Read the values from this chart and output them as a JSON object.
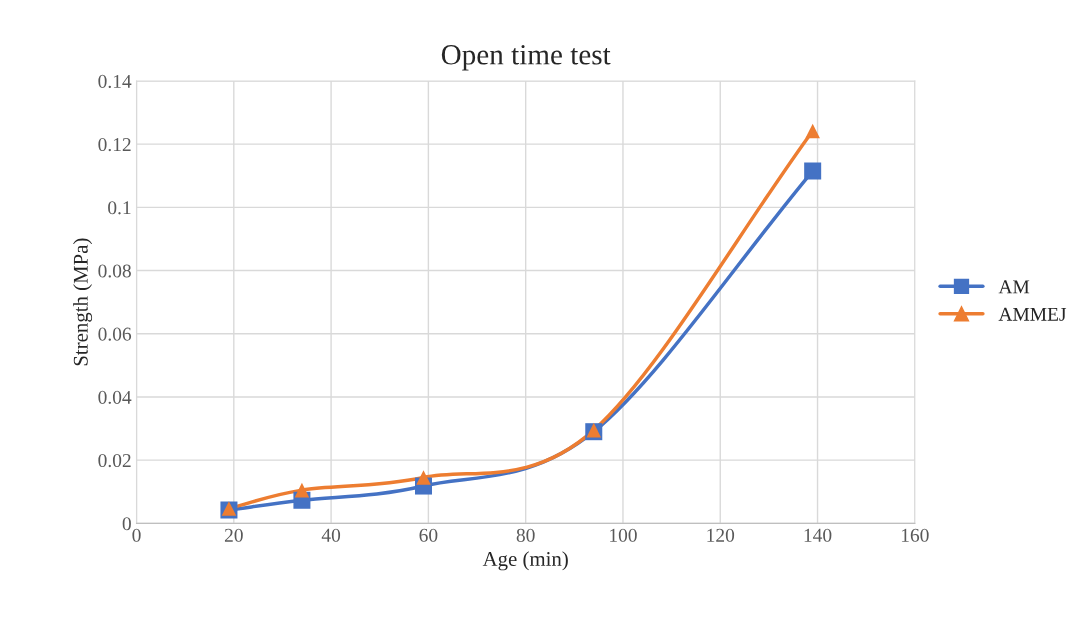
{
  "chart_data": {
    "type": "line",
    "title": "Open time test",
    "xlabel": "Age (min)",
    "ylabel": "Strength (MPa)",
    "series": [
      {
        "name": "AM",
        "color": "#4472c4",
        "marker": "square",
        "x": [
          19,
          34,
          59,
          94,
          139
        ],
        "values": [
          0.0042,
          0.0073,
          0.0118,
          0.029,
          0.1115
        ]
      },
      {
        "name": "AMMEJ",
        "color": "#ed7d31",
        "marker": "triangle",
        "x": [
          19,
          34,
          59,
          94,
          139
        ],
        "values": [
          0.0047,
          0.0105,
          0.0145,
          0.0295,
          0.1242
        ]
      }
    ],
    "xlim": [
      0,
      160
    ],
    "xticks": [
      0,
      20,
      40,
      60,
      80,
      100,
      120,
      140,
      160
    ],
    "ylim": [
      0,
      0.14
    ],
    "yticks": [
      0,
      0.02,
      0.04,
      0.06,
      0.08,
      0.1,
      0.12,
      0.14
    ],
    "grid": true,
    "legend": "right",
    "line_style": "solid"
  }
}
